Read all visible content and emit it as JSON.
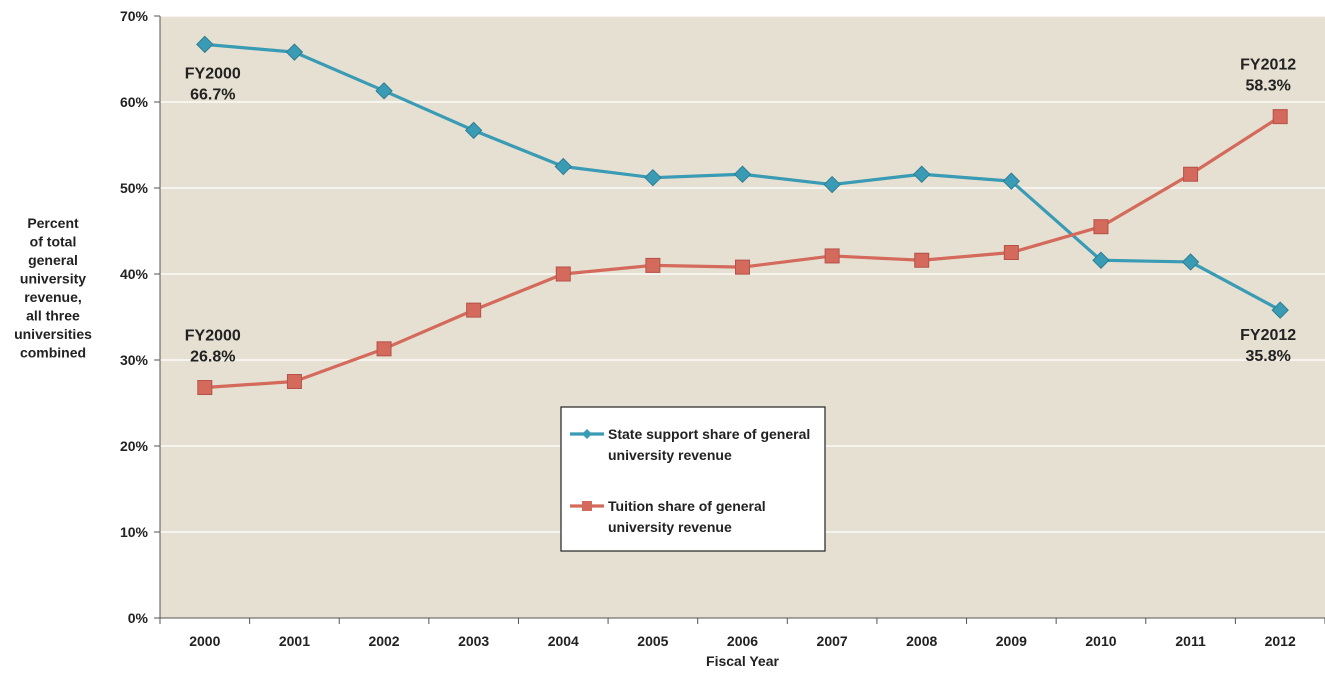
{
  "chart_data": {
    "type": "line",
    "title": "",
    "xlabel": "Fiscal Year",
    "ylabel_lines": [
      "Percent",
      "of total",
      "general",
      "university",
      "revenue,",
      "all three",
      "universities",
      "combined"
    ],
    "categories": [
      "2000",
      "2001",
      "2002",
      "2003",
      "2004",
      "2005",
      "2006",
      "2007",
      "2008",
      "2009",
      "2010",
      "2011",
      "2012"
    ],
    "ylim": [
      0,
      70
    ],
    "yticks": [
      0,
      10,
      20,
      30,
      40,
      50,
      60,
      70
    ],
    "ytick_labels": [
      "0%",
      "10%",
      "20%",
      "30%",
      "40%",
      "50%",
      "60%",
      "70%"
    ],
    "grid": true,
    "legend_position": "center-bottom",
    "background_color": "#e6e0d2",
    "series": [
      {
        "name": "State support share of general university revenue",
        "legend_lines": [
          "State support share of general",
          "university revenue"
        ],
        "color": "#3a9bb5",
        "marker": "diamond",
        "values": [
          66.7,
          65.8,
          61.3,
          56.7,
          52.5,
          51.2,
          51.6,
          50.4,
          51.6,
          50.8,
          41.6,
          41.4,
          35.8
        ]
      },
      {
        "name": "Tuition share of general university revenue",
        "legend_lines": [
          "Tuition share of general",
          "university revenue"
        ],
        "color": "#d46a5c",
        "marker": "square",
        "values": [
          26.8,
          27.5,
          31.3,
          35.8,
          40.0,
          41.0,
          40.8,
          42.1,
          41.6,
          42.5,
          45.5,
          51.6,
          58.3
        ]
      }
    ],
    "annotations": [
      {
        "series": 0,
        "point": 0,
        "lines": [
          "FY2000",
          "66.7%"
        ]
      },
      {
        "series": 1,
        "point": 0,
        "lines": [
          "FY2000",
          "26.8%"
        ]
      },
      {
        "series": 1,
        "point": 12,
        "lines": [
          "FY2012",
          "58.3%"
        ]
      },
      {
        "series": 0,
        "point": 12,
        "lines": [
          "FY2012",
          "35.8%"
        ]
      }
    ]
  }
}
